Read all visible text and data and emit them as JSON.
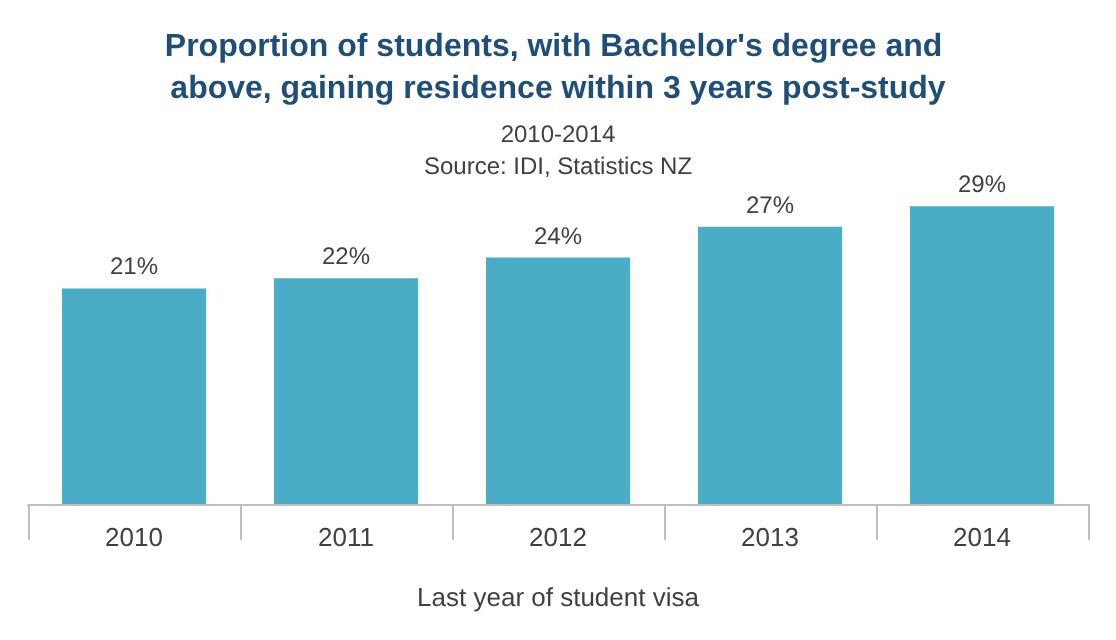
{
  "chart_data": {
    "type": "bar",
    "title": "Proportion of students, with Bachelor's degree and above, gaining residence within 3 years post-study",
    "subtitle": "2010-2014",
    "annotations": [
      "Source: IDI, Statistics NZ"
    ],
    "xlabel": "Last year of student visa",
    "categories": [
      "2010",
      "2011",
      "2012",
      "2013",
      "2014"
    ],
    "values": [
      21,
      22,
      24,
      27,
      29
    ],
    "value_labels": [
      "21%",
      "22%",
      "24%",
      "27%",
      "29%"
    ],
    "color": "#4bacc6",
    "grid": false
  }
}
